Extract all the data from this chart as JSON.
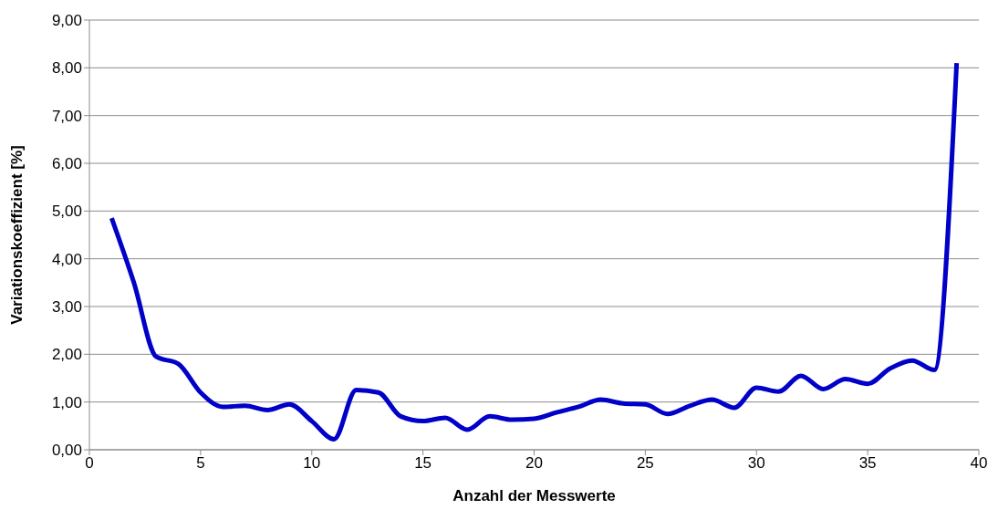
{
  "chart_data": {
    "type": "line",
    "xlabel": "Anzahl der Messwerte",
    "ylabel": "Variationskoeffizient [%]",
    "x": [
      1,
      2,
      3,
      4,
      5,
      6,
      7,
      8,
      9,
      10,
      11,
      12,
      13,
      14,
      15,
      16,
      17,
      18,
      19,
      20,
      21,
      22,
      23,
      24,
      25,
      26,
      27,
      28,
      29,
      30,
      31,
      32,
      33,
      34,
      35,
      36,
      37,
      38,
      39
    ],
    "series": [
      {
        "color": "#0000c8",
        "values": [
          4.85,
          3.5,
          1.95,
          1.8,
          1.2,
          0.9,
          0.92,
          0.83,
          0.95,
          0.6,
          0.22,
          1.25,
          1.2,
          0.7,
          0.6,
          0.67,
          0.42,
          0.7,
          0.63,
          0.65,
          0.78,
          0.9,
          1.05,
          0.97,
          0.95,
          0.75,
          0.92,
          1.05,
          0.88,
          1.3,
          1.22,
          1.55,
          1.27,
          1.48,
          1.38,
          1.7,
          1.87,
          1.67,
          8.1
        ]
      }
    ],
    "xlim": [
      0,
      40
    ],
    "xticks": [
      0,
      5,
      10,
      15,
      20,
      25,
      30,
      35,
      40
    ],
    "ylim": [
      0,
      9
    ],
    "yticks": [
      {
        "value": 0,
        "label": "0,00"
      },
      {
        "value": 1,
        "label": "1,00"
      },
      {
        "value": 2,
        "label": "2,00"
      },
      {
        "value": 3,
        "label": "3,00"
      },
      {
        "value": 4,
        "label": "4,00"
      },
      {
        "value": 5,
        "label": "5,00"
      },
      {
        "value": 6,
        "label": "6,00"
      },
      {
        "value": 7,
        "label": "7,00"
      },
      {
        "value": 8,
        "label": "8,00"
      },
      {
        "value": 9,
        "label": "9,00"
      }
    ],
    "grid": "y",
    "legend": false,
    "marker": "none",
    "line_style": "solid"
  }
}
